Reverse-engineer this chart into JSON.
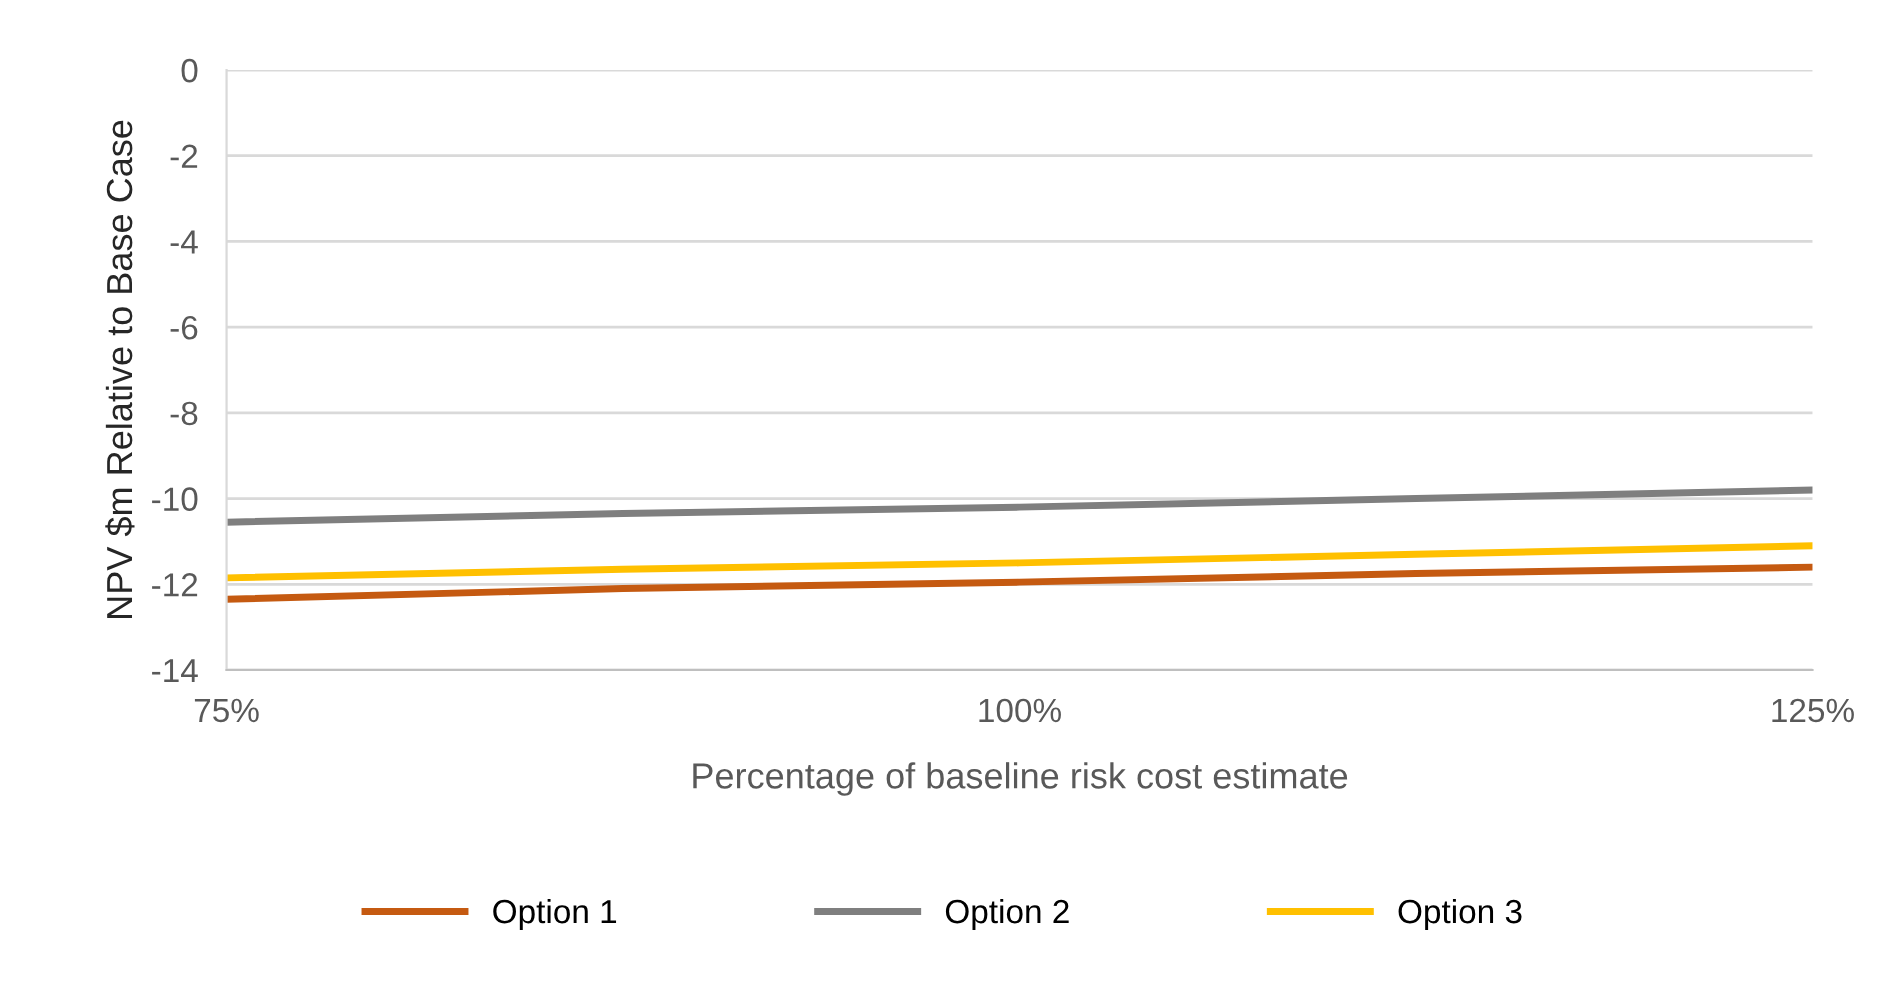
{
  "chart_data": {
    "type": "line",
    "xlabel": "Percentage of baseline risk cost estimate",
    "ylabel": "NPV $m Relative to Base Case",
    "x": [
      75,
      87.5,
      100,
      112.5,
      125
    ],
    "series": [
      {
        "name": "Option 1",
        "color": "#c55a11",
        "values": [
          -12.35,
          -12.1,
          -11.95,
          -11.75,
          -11.6
        ]
      },
      {
        "name": "Option 2",
        "color": "#7f7f7f",
        "values": [
          -10.55,
          -10.35,
          -10.2,
          -10.0,
          -9.8
        ]
      },
      {
        "name": "Option 3",
        "color": "#ffc000",
        "values": [
          -11.85,
          -11.65,
          -11.5,
          -11.3,
          -11.1
        ]
      }
    ],
    "xlim": [
      75,
      125
    ],
    "xticks": [
      {
        "value": 75,
        "label": "75%"
      },
      {
        "value": 100,
        "label": "100%"
      },
      {
        "value": 125,
        "label": "125%"
      }
    ],
    "ylim": [
      -14,
      0
    ],
    "yticks": [
      -14,
      -12,
      -10,
      -8,
      -6,
      -4,
      -2,
      0
    ],
    "grid": "y",
    "legend": "bottom",
    "marker": "none",
    "line_style": "solid"
  }
}
